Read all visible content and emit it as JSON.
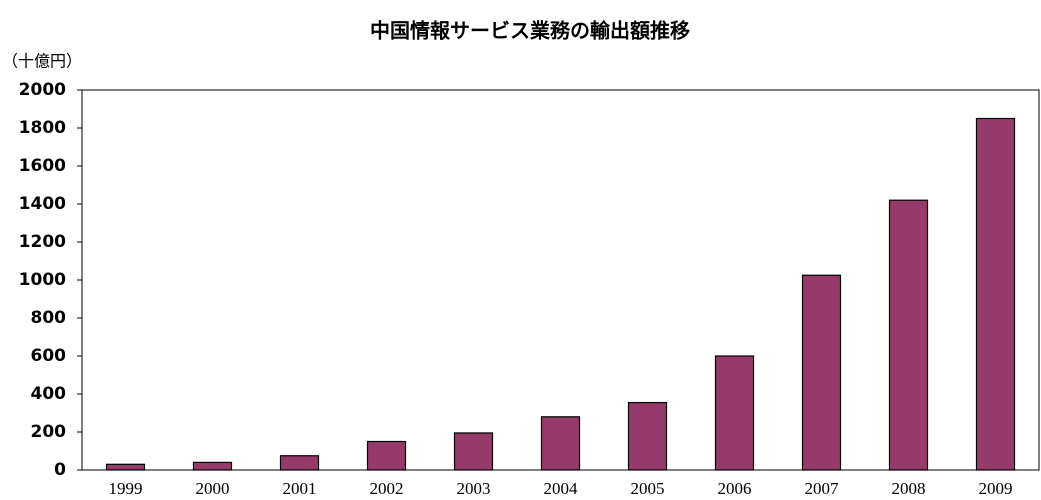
{
  "chart_data": {
    "type": "bar",
    "title": "中国情報サービス業務の輸出額推移",
    "y_label": "（十億円）",
    "categories": [
      "1999",
      "2000",
      "2001",
      "2002",
      "2003",
      "2004",
      "2005",
      "2006",
      "2007",
      "2008",
      "2009"
    ],
    "values": [
      30,
      40,
      75,
      150,
      195,
      280,
      355,
      600,
      1025,
      1420,
      1850
    ],
    "color": "#963a6a",
    "ylim": [
      0,
      2000
    ],
    "yticks": [
      0,
      200,
      400,
      600,
      800,
      1000,
      1200,
      1400,
      1600,
      1800,
      2000
    ],
    "grid": false
  }
}
